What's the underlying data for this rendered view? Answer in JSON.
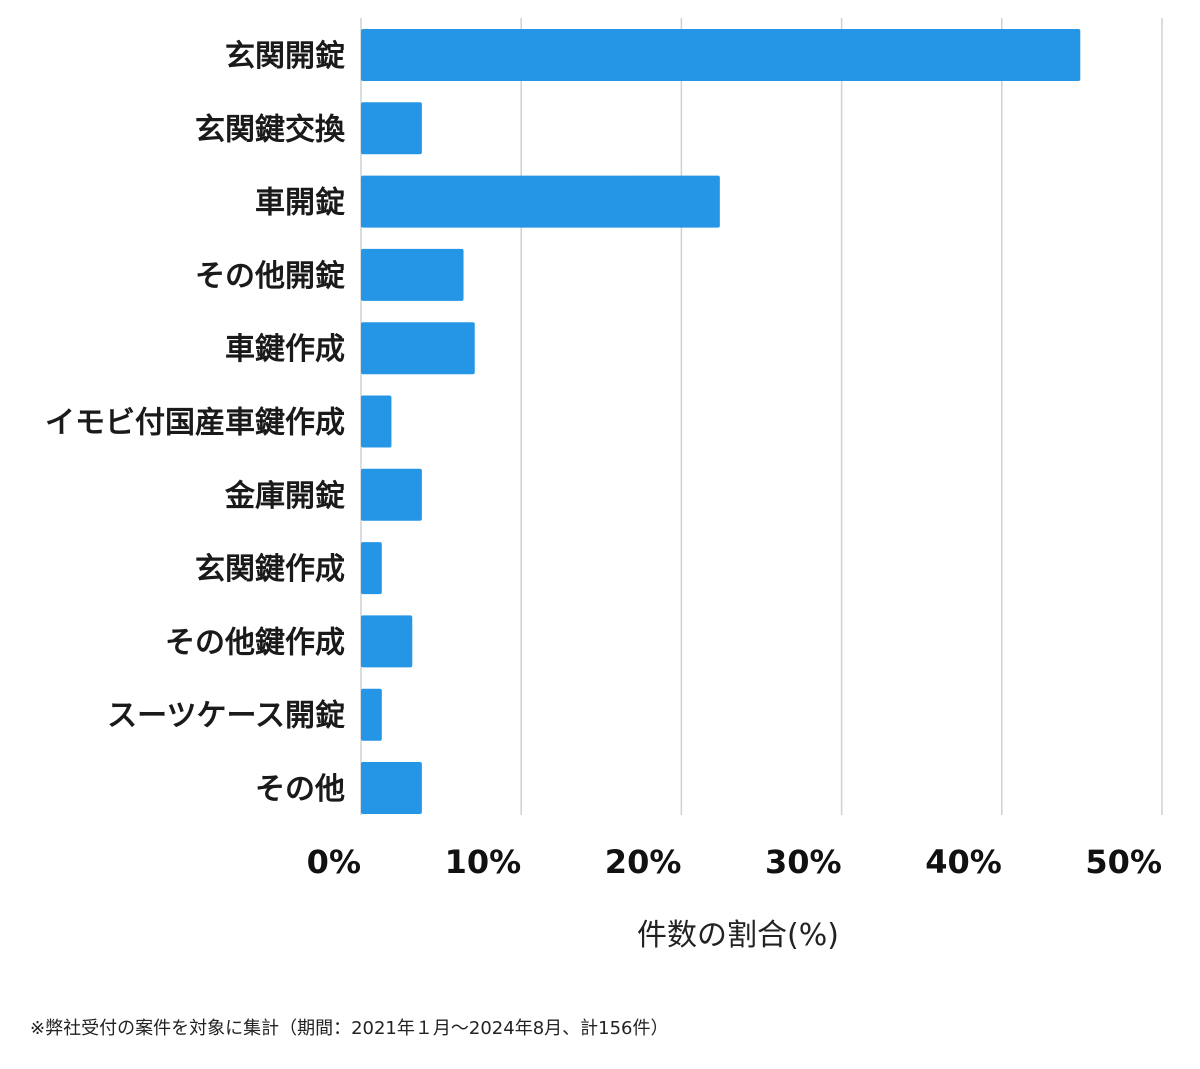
{
  "chart_data": {
    "type": "bar",
    "orientation": "horizontal",
    "categories": [
      "玄関開錠",
      "玄関鍵交換",
      "車開錠",
      "その他開錠",
      "車鍵作成",
      "イモビ付国産車鍵作成",
      "金庫開錠",
      "玄関鍵作成",
      "その他鍵作成",
      "スーツケース開錠",
      "その他"
    ],
    "values": [
      44.9,
      3.8,
      22.4,
      6.4,
      7.1,
      1.9,
      3.8,
      1.3,
      3.2,
      1.3,
      3.8
    ],
    "xlabel": "件数の割合(%)",
    "ylabel": "",
    "xlim": [
      0,
      50
    ],
    "x_ticks": [
      "0%",
      "10%",
      "20%",
      "30%",
      "40%",
      "50%"
    ],
    "grid": true,
    "bar_color": "#2596e6",
    "grid_color": "#d0d0d0"
  },
  "footnote": "※弊社受付の案件を対象に集計（期間：2021年１月〜2024年8月、計156件）"
}
